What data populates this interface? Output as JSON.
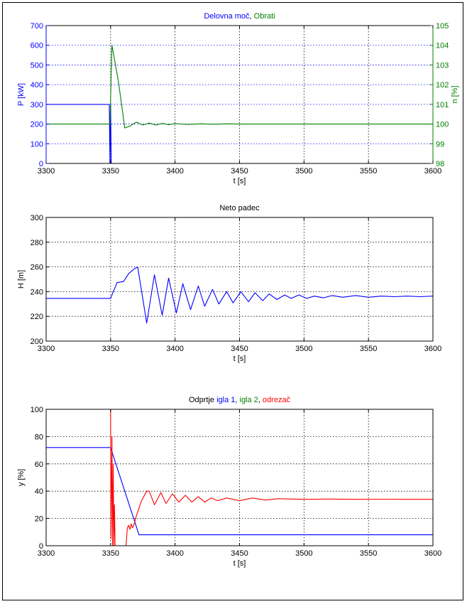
{
  "chart_data": [
    {
      "type": "line",
      "title_parts": [
        {
          "text": "Delovna moč",
          "color": "#0000ff"
        },
        {
          "text": ", ",
          "color": "#000000"
        },
        {
          "text": "Obrati",
          "color": "#008000"
        }
      ],
      "xlabel": "t [s]",
      "ylabel": "P [kW]",
      "y2label": "n [%]",
      "xlim": [
        3300,
        3600
      ],
      "ylim": [
        0,
        700
      ],
      "y2lim": [
        98,
        105
      ],
      "xticks": [
        "3300",
        "3350",
        "3400",
        "3450",
        "3500",
        "3550",
        "3600"
      ],
      "yticks": [
        "0",
        "100",
        "200",
        "300",
        "400",
        "500",
        "600",
        "700"
      ],
      "y2ticks": [
        "98",
        "99",
        "100",
        "101",
        "102",
        "103",
        "104",
        "105"
      ],
      "grid": true,
      "series": [
        {
          "color": "#0000ff",
          "axis": "left",
          "x": [
            3300,
            3349,
            3349.5,
            3350,
            3350.5,
            3352,
            3600
          ],
          "y": [
            300,
            300,
            0,
            300,
            0,
            0,
            0
          ]
        },
        {
          "color": "#008000",
          "axis": "right",
          "x": [
            3300,
            3349.5,
            3351,
            3356,
            3361,
            3365,
            3370,
            3375,
            3380,
            3385,
            3390,
            3395,
            3400,
            3410,
            3420,
            3430,
            3440,
            3450,
            3460,
            3600
          ],
          "y": [
            100,
            100,
            104,
            102.2,
            99.8,
            99.9,
            100.1,
            99.95,
            100.05,
            99.95,
            100.03,
            99.97,
            100.02,
            99.98,
            100.01,
            99.99,
            100.01,
            100,
            100,
            100
          ]
        }
      ]
    },
    {
      "type": "line",
      "title_parts": [
        {
          "text": "Neto padec",
          "color": "#000000"
        }
      ],
      "xlabel": "t [s]",
      "ylabel": "H [m]",
      "xlim": [
        3300,
        3600
      ],
      "ylim": [
        190,
        300
      ],
      "xticks": [
        "3300",
        "3350",
        "3400",
        "3450",
        "3500",
        "3550",
        "3600"
      ],
      "yticks": [
        "200",
        "220",
        "240",
        "260",
        "280",
        "300"
      ],
      "grid": true,
      "series": [
        {
          "color": "#0000ff",
          "x": [
            3300,
            3350,
            3355,
            3360,
            3364,
            3368,
            3371,
            3378,
            3384,
            3390,
            3395,
            3401,
            3406,
            3412,
            3418,
            3423,
            3429,
            3434,
            3440,
            3445,
            3451,
            3457,
            3462,
            3468,
            3473,
            3479,
            3485,
            3490,
            3496,
            3502,
            3508,
            3515,
            3522,
            3530,
            3540,
            3550,
            3560,
            3570,
            3580,
            3590,
            3600
          ],
          "y": [
            228,
            228,
            242,
            243,
            250,
            254,
            256,
            206,
            249,
            213,
            246,
            215,
            241,
            218,
            239,
            221,
            236,
            223,
            234,
            224,
            234,
            225,
            233,
            226,
            232,
            227,
            231,
            228,
            231,
            228,
            230,
            228.5,
            230.5,
            229,
            230.5,
            229,
            230,
            229.5,
            230,
            229.5,
            230
          ]
        }
      ]
    },
    {
      "type": "line",
      "title_parts": [
        {
          "text": "Odprtje ",
          "color": "#000000"
        },
        {
          "text": "igla 1",
          "color": "#0000ff"
        },
        {
          "text": ", ",
          "color": "#000000"
        },
        {
          "text": "igla 2",
          "color": "#008000"
        },
        {
          "text": ", ",
          "color": "#000000"
        },
        {
          "text": "odrezač",
          "color": "#ff0000"
        }
      ],
      "xlabel": "t [s]",
      "ylabel": "y [%]",
      "xlim": [
        3300,
        3600
      ],
      "ylim": [
        0,
        100
      ],
      "xticks": [
        "3300",
        "3350",
        "3400",
        "3450",
        "3500",
        "3550",
        "3600"
      ],
      "yticks": [
        "0",
        "20",
        "40",
        "60",
        "80",
        "100"
      ],
      "grid": true,
      "series": [
        {
          "color": "#0000ff",
          "x": [
            3300,
            3350,
            3372,
            3600
          ],
          "y": [
            72,
            72,
            8,
            8
          ]
        },
        {
          "color": "#008000",
          "x": [
            3300,
            3600
          ],
          "y": [
            0,
            0
          ]
        },
        {
          "color": "#ff0000",
          "x": [
            3300,
            3350,
            3350.3,
            3351,
            3351.5,
            3352,
            3352.5,
            3353,
            3353.5,
            3354,
            3362,
            3363,
            3364,
            3365,
            3366,
            3367,
            3368,
            3370,
            3374,
            3378,
            3380,
            3384,
            3389,
            3393,
            3398,
            3403,
            3408,
            3413,
            3418,
            3423,
            3428,
            3433,
            3440,
            3450,
            3460,
            3470,
            3480,
            3500,
            3520,
            3540,
            3560,
            3580,
            3590,
            3600
          ],
          "y": [
            100,
            100,
            5,
            80,
            0,
            60,
            0,
            30,
            0,
            0,
            0,
            13,
            15,
            12,
            16,
            13,
            15,
            22,
            33,
            40,
            40,
            30,
            39,
            31,
            38,
            32,
            37,
            32,
            36,
            32,
            35,
            33,
            35,
            33,
            35,
            33.5,
            34.5,
            34,
            34.2,
            34,
            34.1,
            34,
            34,
            34
          ]
        }
      ]
    }
  ]
}
